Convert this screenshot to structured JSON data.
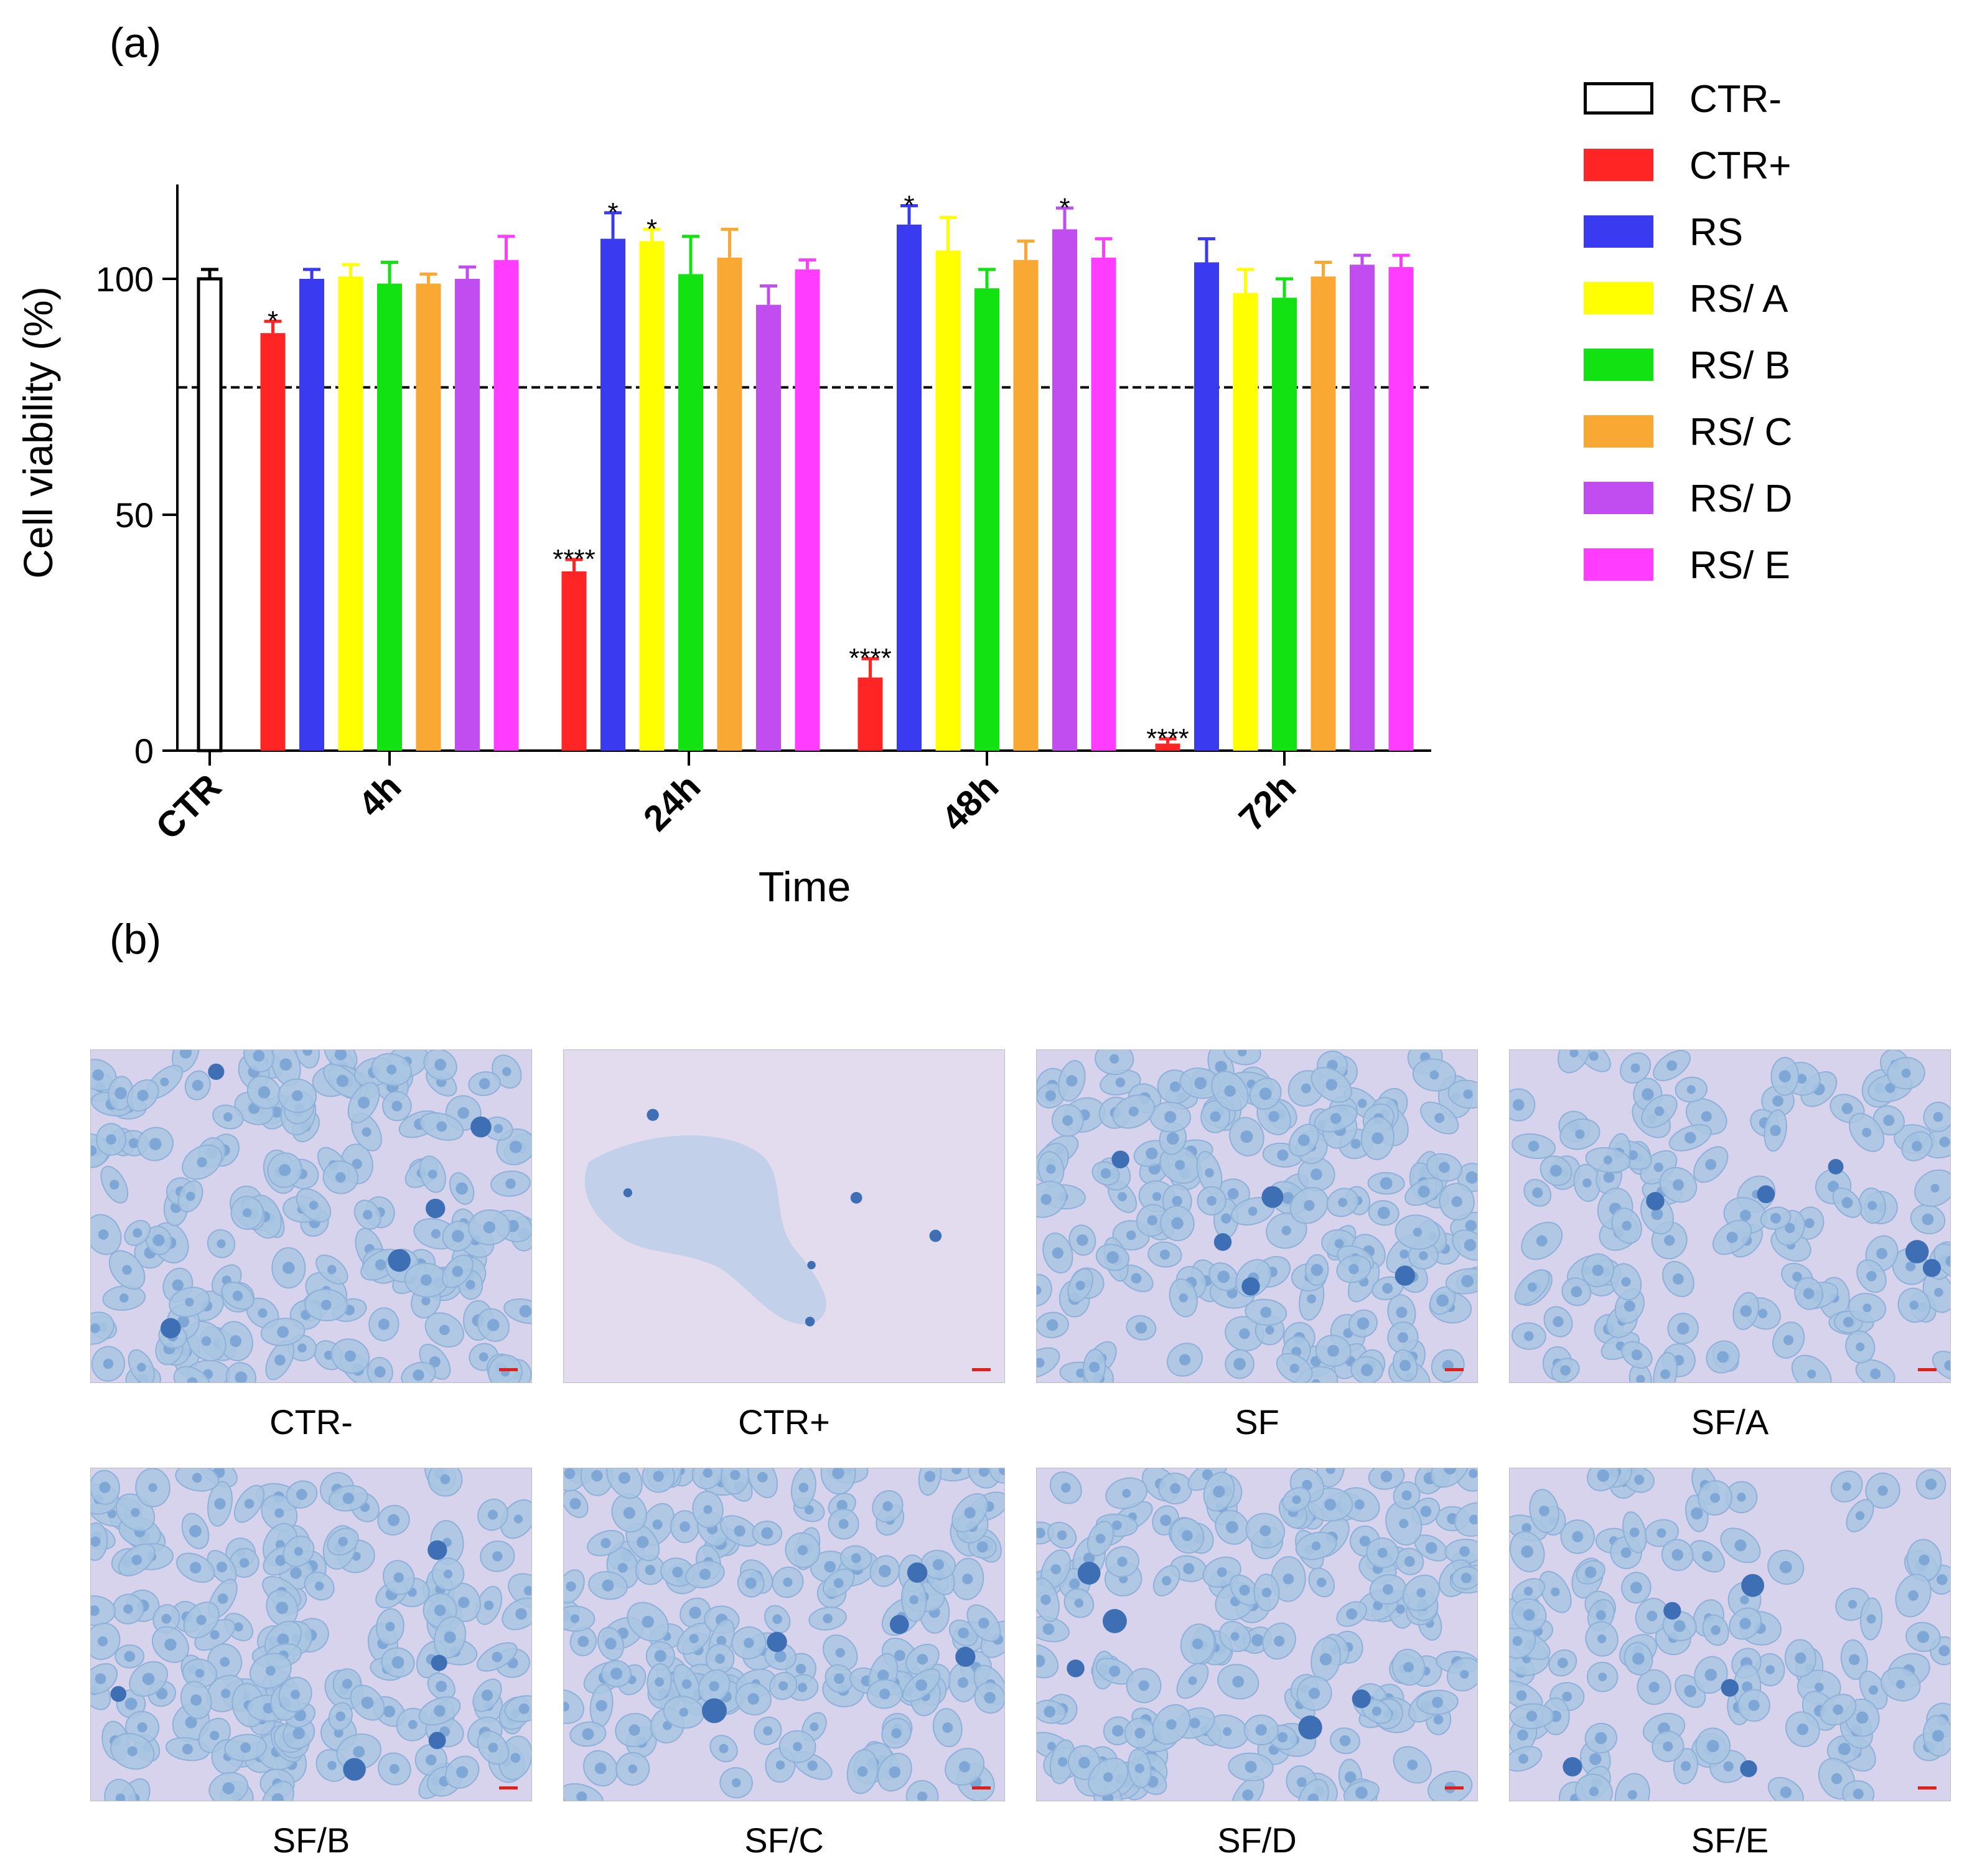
{
  "panel_a_label": "(a)",
  "panel_b_label": "(b)",
  "chart_data": {
    "type": "bar",
    "ylabel": "Cell viability (%)",
    "xlabel": "Time",
    "ylim": [
      0,
      120
    ],
    "yticks": [
      0,
      50,
      100
    ],
    "reference_line": 77,
    "categories": [
      "CTR",
      "4h",
      "24h",
      "48h",
      "72h"
    ],
    "series": [
      {
        "name": "CTR-",
        "color": "#ffffff",
        "stroke": "#000000",
        "values": [
          100,
          null,
          null,
          null,
          null
        ],
        "errors": [
          2,
          null,
          null,
          null,
          null
        ],
        "annotations": [
          "",
          "",
          "",
          "",
          ""
        ]
      },
      {
        "name": "CTR+",
        "color": "#ff2525",
        "stroke": "#ff2525",
        "values": [
          null,
          88.5,
          38,
          15.5,
          1.5
        ],
        "errors": [
          null,
          2.5,
          2.5,
          4,
          1
        ],
        "annotations": [
          "",
          "*",
          "****",
          "****",
          "****"
        ]
      },
      {
        "name": "RS",
        "color": "#3a3af0",
        "stroke": "#3a3af0",
        "values": [
          null,
          100,
          108.5,
          111.5,
          103.5
        ],
        "errors": [
          null,
          2,
          5.5,
          4,
          5
        ],
        "annotations": [
          "",
          "",
          "*",
          "*",
          ""
        ]
      },
      {
        "name": "RS/ A",
        "color": "#ffff00",
        "stroke": "#ffff00",
        "values": [
          null,
          100.5,
          108,
          106,
          97
        ],
        "errors": [
          null,
          2.5,
          2.5,
          7,
          5
        ],
        "annotations": [
          "",
          "",
          "*",
          "",
          ""
        ]
      },
      {
        "name": "RS/ B",
        "color": "#12e212",
        "stroke": "#12e212",
        "values": [
          null,
          99,
          101,
          98,
          96
        ],
        "errors": [
          null,
          4.5,
          8,
          4,
          4
        ],
        "annotations": [
          "",
          "",
          "",
          "",
          ""
        ]
      },
      {
        "name": "RS/ C",
        "color": "#f9a933",
        "stroke": "#f9a933",
        "values": [
          null,
          99,
          104.5,
          104,
          100.5
        ],
        "errors": [
          null,
          2,
          6,
          4,
          3
        ],
        "annotations": [
          "",
          "",
          "",
          "",
          ""
        ]
      },
      {
        "name": "RS/ D",
        "color": "#c14df0",
        "stroke": "#c14df0",
        "values": [
          null,
          100,
          94.5,
          110.5,
          103
        ],
        "errors": [
          null,
          2.5,
          4,
          4.5,
          2
        ],
        "annotations": [
          "",
          "",
          "",
          "*",
          ""
        ]
      },
      {
        "name": "RS/ E",
        "color": "#ff3cff",
        "stroke": "#ff3cff",
        "values": [
          null,
          104,
          102,
          104.5,
          102.5
        ],
        "errors": [
          null,
          5,
          2,
          4,
          2.5
        ],
        "annotations": [
          "",
          "",
          "",
          "",
          ""
        ]
      }
    ]
  },
  "micrographs": [
    {
      "caption": "CTR-",
      "variant": "dense"
    },
    {
      "caption": "CTR+",
      "variant": "sparse"
    },
    {
      "caption": "SF",
      "variant": "dense"
    },
    {
      "caption": "SF/A",
      "variant": "medium"
    },
    {
      "caption": "SF/B",
      "variant": "dense"
    },
    {
      "caption": "SF/C",
      "variant": "dense"
    },
    {
      "caption": "SF/D",
      "variant": "dense"
    },
    {
      "caption": "SF/E",
      "variant": "medium"
    }
  ],
  "colors": {
    "micro_background": "#d7d3ec",
    "micro_sparse_background": "#e3dcef",
    "cell_fill": "#a9c6e3",
    "nucleus_fill": "#7ea7d6",
    "dark_cell": "#3e6fb5",
    "scale_bar": "#e0201a"
  }
}
